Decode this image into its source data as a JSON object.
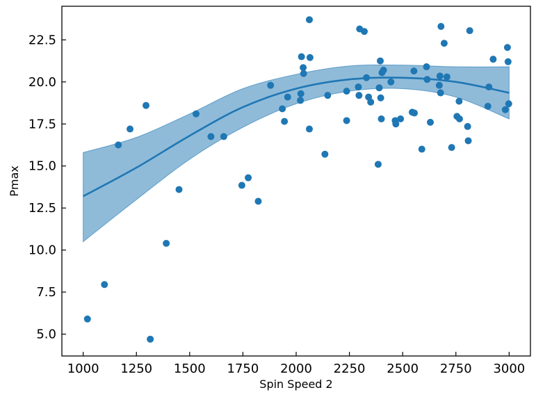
{
  "chart_data": {
    "type": "scatter",
    "xlabel": "Spin Speed 2",
    "ylabel": "Pmax",
    "xlim": [
      900,
      3100
    ],
    "ylim": [
      3.7,
      24.5
    ],
    "xticks": [
      1000,
      1250,
      1500,
      1750,
      2000,
      2250,
      2500,
      2750,
      3000
    ],
    "yticks": [
      5.0,
      7.5,
      10.0,
      12.5,
      15.0,
      17.5,
      20.0,
      22.5
    ],
    "grid": false,
    "colors": {
      "points": "#1f77b4",
      "line": "#1f77b4",
      "band": "#1f77b4"
    },
    "series": [
      {
        "kind": "scatter",
        "x": [
          1020,
          1100,
          1165,
          1220,
          1295,
          1315,
          1390,
          1450,
          1530,
          1600,
          1660,
          1745,
          1775,
          1822,
          1880,
          1935,
          1945,
          1960,
          2020,
          2022,
          2025,
          2033,
          2035,
          2062,
          2062,
          2065,
          2135,
          2148,
          2237,
          2237,
          2292,
          2295,
          2298,
          2320,
          2330,
          2340,
          2350,
          2385,
          2390,
          2395,
          2397,
          2400,
          2403,
          2410,
          2445,
          2465,
          2468,
          2490,
          2545,
          2553,
          2555,
          2590,
          2612,
          2615,
          2630,
          2672,
          2675,
          2678,
          2680,
          2695,
          2708,
          2730,
          2755,
          2765,
          2767,
          2805,
          2808,
          2815,
          2900,
          2905,
          2925,
          2982,
          2992,
          2995,
          2998
        ],
        "y": [
          5.9,
          7.95,
          16.25,
          17.2,
          18.6,
          4.7,
          10.4,
          13.6,
          18.1,
          16.75,
          16.75,
          13.85,
          14.3,
          12.9,
          19.8,
          18.4,
          17.65,
          19.1,
          18.9,
          19.3,
          21.5,
          20.85,
          20.5,
          23.7,
          17.2,
          21.45,
          15.7,
          19.2,
          19.45,
          17.7,
          19.7,
          19.2,
          23.15,
          23.0,
          20.25,
          19.1,
          18.8,
          15.1,
          19.65,
          21.25,
          19.05,
          17.8,
          20.55,
          20.7,
          20.0,
          17.7,
          17.5,
          17.8,
          18.2,
          20.65,
          18.15,
          16.0,
          20.9,
          20.15,
          17.6,
          19.8,
          20.35,
          19.35,
          23.3,
          22.3,
          20.3,
          16.1,
          17.95,
          18.85,
          17.8,
          17.35,
          16.5,
          23.05,
          18.55,
          19.7,
          21.35,
          18.35,
          22.05,
          21.2,
          18.7
        ]
      },
      {
        "kind": "line",
        "x": [
          1000,
          1250,
          1500,
          1750,
          2000,
          2250,
          2500,
          2750,
          3000
        ],
        "y": [
          13.2,
          14.9,
          16.8,
          18.5,
          19.6,
          20.15,
          20.25,
          20.0,
          19.35
        ]
      },
      {
        "kind": "band",
        "x": [
          1000,
          1250,
          1500,
          1750,
          2000,
          2250,
          2500,
          2750,
          3000
        ],
        "lower": [
          10.5,
          13.0,
          15.4,
          17.3,
          18.7,
          19.45,
          19.6,
          19.1,
          17.8
        ],
        "upper": [
          15.8,
          16.7,
          18.1,
          19.6,
          20.45,
          20.95,
          21.0,
          20.9,
          20.9
        ]
      }
    ]
  }
}
